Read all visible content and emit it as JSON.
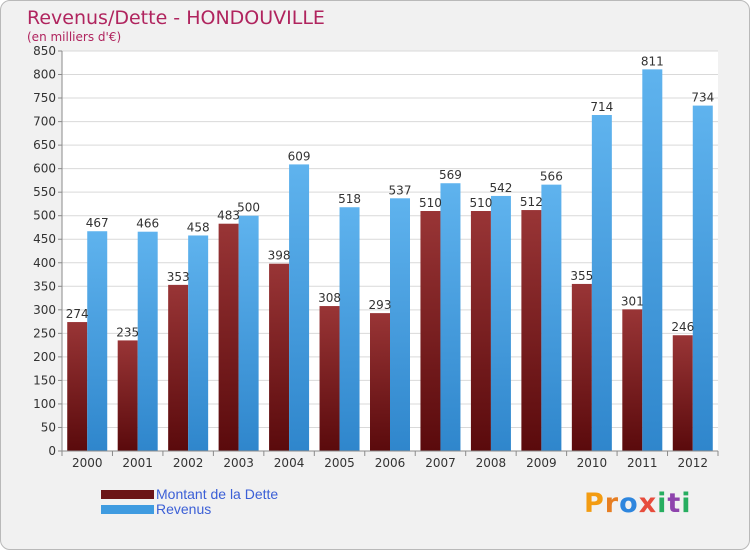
{
  "header": {
    "title": "Revenus/Dette - HONDOUVILLE",
    "subtitle": "(en milliers d'€)"
  },
  "legend": {
    "items": [
      {
        "label": "Montant de la Dette"
      },
      {
        "label": "Revenus"
      }
    ]
  },
  "logo": {
    "letters": [
      "P",
      "r",
      "o",
      "x",
      "i",
      "t",
      "i"
    ]
  },
  "colors": {
    "title": "#b0245e",
    "dette": "#7a1a1c",
    "revenus": "#4aa3e6",
    "legend_text": "#3b5fd6",
    "logo": [
      "#f39c12",
      "#e67e22",
      "#2e86de",
      "#e74c3c",
      "#27ae60",
      "#8e44ad",
      "#27ae60"
    ]
  },
  "chart_data": {
    "type": "bar",
    "title": "Revenus/Dette - HONDOUVILLE",
    "ylabel": "(en milliers d'€)",
    "categories": [
      "2000",
      "2001",
      "2002",
      "2003",
      "2004",
      "2005",
      "2006",
      "2007",
      "2008",
      "2009",
      "2010",
      "2011",
      "2012"
    ],
    "series": [
      {
        "name": "Montant de la Dette",
        "values": [
          274,
          235,
          353,
          483,
          398,
          308,
          293,
          510,
          510,
          512,
          355,
          301,
          246
        ]
      },
      {
        "name": "Revenus",
        "values": [
          467,
          466,
          458,
          500,
          609,
          518,
          537,
          569,
          542,
          566,
          714,
          811,
          734
        ]
      }
    ],
    "ylim": [
      0,
      850
    ],
    "yticks": [
      "0",
      "50",
      "100",
      "150",
      "200",
      "250",
      "300",
      "350",
      "400",
      "450",
      "500",
      "550",
      "600",
      "650",
      "700",
      "750",
      "800",
      "850"
    ],
    "grid": true,
    "legend_position": "bottom-left"
  }
}
